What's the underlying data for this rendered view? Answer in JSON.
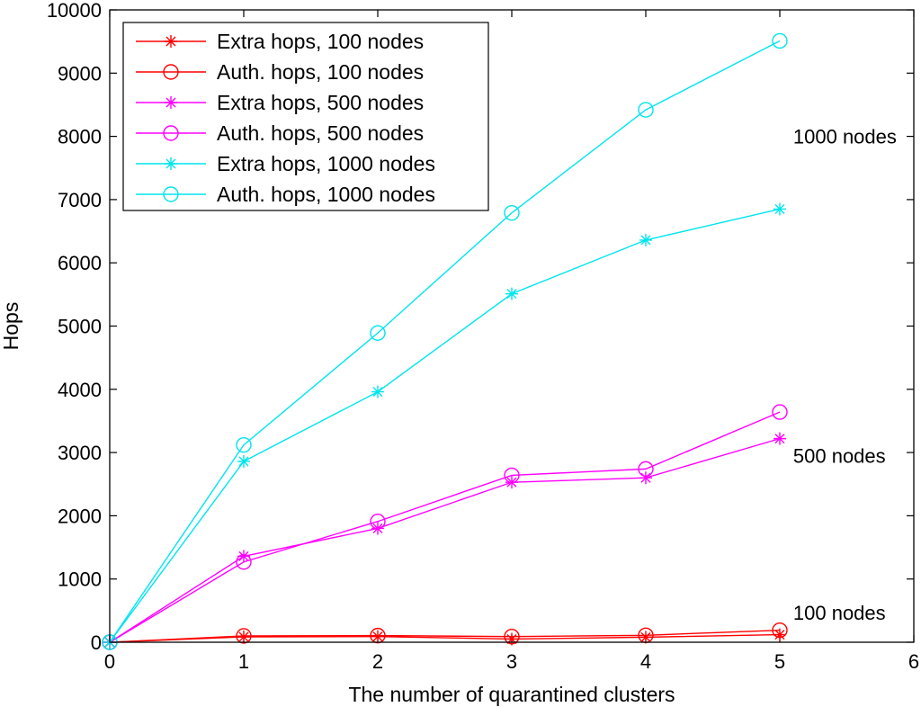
{
  "chart_data": {
    "type": "line",
    "title": "",
    "xlabel": "The number of quarantined clusters",
    "ylabel": "Hops",
    "xlim": [
      0,
      6
    ],
    "ylim": [
      0,
      10000
    ],
    "xticks": [
      0,
      1,
      2,
      3,
      4,
      5,
      6
    ],
    "yticks": [
      0,
      1000,
      2000,
      3000,
      4000,
      5000,
      6000,
      7000,
      8000,
      9000,
      10000
    ],
    "grid": false,
    "legend_position": "top-left",
    "x": [
      0,
      1,
      2,
      3,
      4,
      5
    ],
    "series": [
      {
        "name": "Extra hops, 100 nodes",
        "color": "#ff0000",
        "marker": "star",
        "values": [
          0,
          85,
          90,
          50,
          80,
          120
        ]
      },
      {
        "name": "Auth. hops, 100 nodes",
        "color": "#ff0000",
        "marker": "circle",
        "values": [
          0,
          100,
          105,
          90,
          110,
          190
        ]
      },
      {
        "name": "Extra hops, 500 nodes",
        "color": "#ff00ff",
        "marker": "star",
        "values": [
          0,
          1360,
          1800,
          2530,
          2600,
          3220
        ]
      },
      {
        "name": "Auth. hops, 500 nodes",
        "color": "#ff00ff",
        "marker": "circle",
        "values": [
          0,
          1270,
          1910,
          2640,
          2740,
          3640
        ]
      },
      {
        "name": "Extra hops, 1000 nodes",
        "color": "#00e5ee",
        "marker": "star",
        "values": [
          0,
          2860,
          3960,
          5510,
          6360,
          6850
        ]
      },
      {
        "name": "Auth. hops, 1000 nodes",
        "color": "#00e5ee",
        "marker": "circle",
        "values": [
          0,
          3120,
          4890,
          6790,
          8420,
          9510
        ]
      }
    ],
    "annotations": [
      {
        "text": "1000 nodes",
        "x": 5.1,
        "y": 8000
      },
      {
        "text": "500 nodes",
        "x": 5.1,
        "y": 2950
      },
      {
        "text": "100 nodes",
        "x": 5.1,
        "y": 470
      }
    ]
  }
}
